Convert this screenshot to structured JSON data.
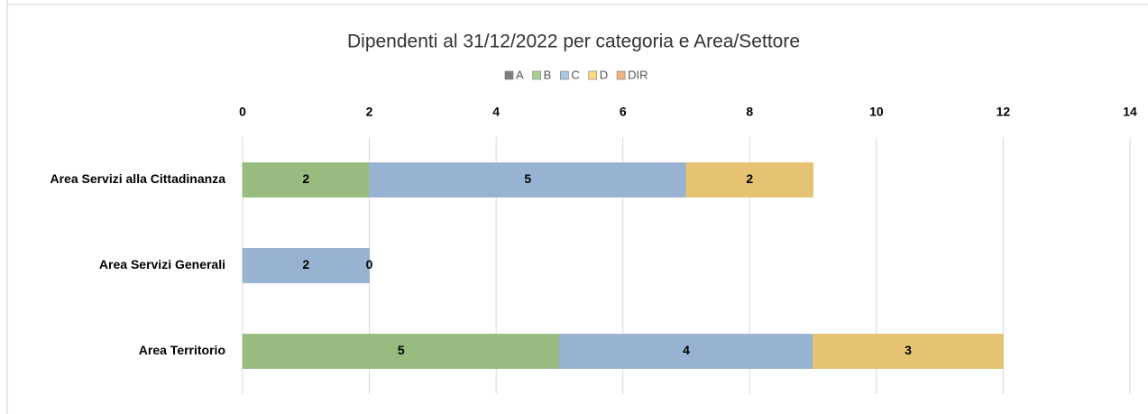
{
  "chart_data": {
    "type": "stacked-bar-horizontal",
    "title": "Dipendenti al 31/12/2022 per categoria e Area/Settore",
    "categories": [
      "Area Servizi alla Cittadinanza",
      "Area Servizi Generali",
      "Area Territorio"
    ],
    "series": [
      {
        "name": "A",
        "color": "#808080",
        "values": [
          null,
          null,
          null
        ]
      },
      {
        "name": "B",
        "color": "#a9d18e",
        "values": [
          2,
          null,
          5
        ]
      },
      {
        "name": "C",
        "color": "#a9c6e8",
        "values": [
          5,
          2,
          4
        ]
      },
      {
        "name": "D",
        "color": "#ffd97f",
        "values": [
          2,
          0,
          3
        ]
      },
      {
        "name": "DIR",
        "color": "#f4b183",
        "values": [
          null,
          null,
          null
        ]
      }
    ],
    "xlim": [
      0,
      14
    ],
    "xticks": [
      0,
      2,
      4,
      6,
      8,
      10,
      12,
      14
    ],
    "grid": true,
    "legend": "top"
  }
}
